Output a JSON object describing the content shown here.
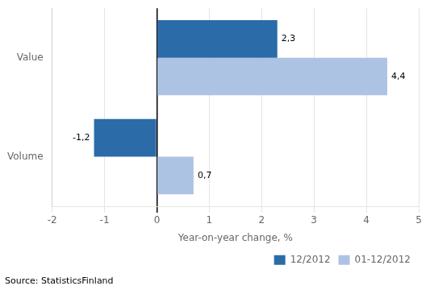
{
  "chart_data": {
    "type": "bar",
    "orientation": "horizontal",
    "categories": [
      "Value",
      "Volume"
    ],
    "series": [
      {
        "name": "12/2012",
        "color": "#2b6ca8",
        "values": [
          2.3,
          -1.2
        ],
        "value_labels": [
          "2,3",
          "-1,2"
        ]
      },
      {
        "name": "01-12/2012",
        "color": "#adc3e4",
        "values": [
          4.4,
          0.7
        ],
        "value_labels": [
          "4,4",
          "0,7"
        ]
      }
    ],
    "xlim": [
      -2,
      5
    ],
    "xticks": [
      -2,
      -1,
      0,
      1,
      2,
      3,
      4,
      5
    ],
    "xlabel": "Year-on-year change, %",
    "data_labels": true,
    "grid": true,
    "legend": "lower right",
    "annotations": [
      "Source: StatisticsFinland"
    ]
  }
}
